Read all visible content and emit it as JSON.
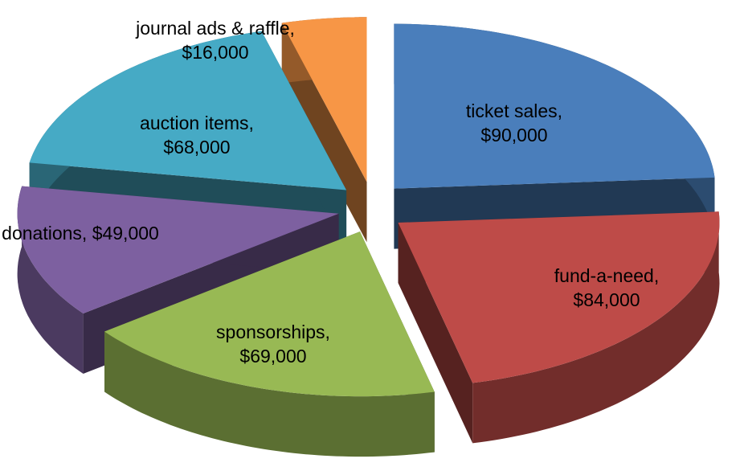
{
  "chart_data": {
    "type": "pie",
    "categories": [
      "ticket sales,",
      "fund-a-need,",
      "sponsorships,",
      "donations,",
      "auction items,",
      "journal ads & raffle,"
    ],
    "values": [
      90000,
      84000,
      69000,
      49000,
      68000,
      16000
    ],
    "value_labels": [
      "$90,000",
      "$84,000",
      "$69,000",
      "$49,000",
      "$68,000",
      "$16,000"
    ],
    "colors": [
      "#4a7ebb",
      "#be4b48",
      "#98b954",
      "#7d60a0",
      "#46aac5",
      "#f79646"
    ]
  }
}
